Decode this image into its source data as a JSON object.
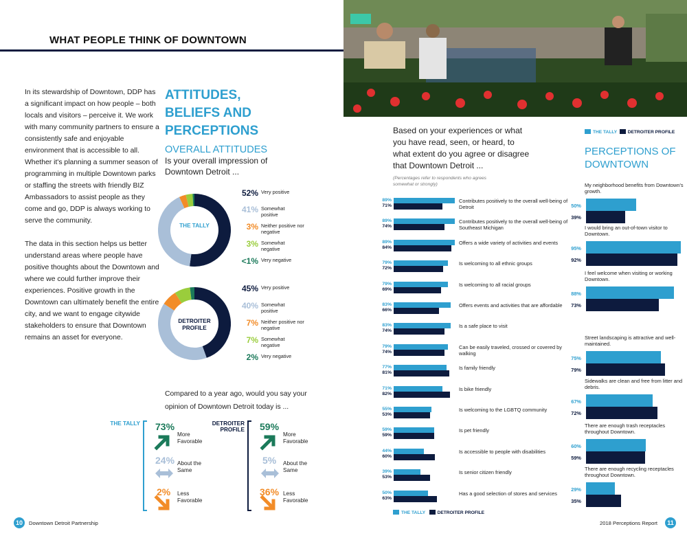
{
  "left_page": {
    "title": "WHAT PEOPLE THINK OF DOWNTOWN",
    "intro_paragraphs": [
      "In its stewardship of Downtown, DDP has a significant impact on how people – both locals and visitors – perceive it. We work with many community partners to ensure a consistently safe and enjoyable environment that is accessible to all. Whether it's planning a summer season of programming in multiple Downtown parks or staffing the streets with friendly BIZ Ambassadors to assist people as they come and go, DDP is always working to serve the community.",
      "The data in this section helps us better understand areas where people have positive thoughts about the Downtown and where we could further improve their experiences. Positive growth in the Downtown can ultimately benefit the entire city, and we want to engage citywide stakeholders to ensure that Downtown remains an asset for everyone."
    ],
    "section_title": "ATTITUDES, BELIEFS AND PERCEPTIONS",
    "subsection_title": "OVERALL ATTITUDES",
    "question": "Is your overall impression of Downtown Detroit ...",
    "donuts": [
      {
        "label": "THE TALLY",
        "color": "#2e9fcf",
        "slices": [
          {
            "pct": "52%",
            "value": 52,
            "label": "Very positive",
            "color": "#0d1b3e"
          },
          {
            "pct": "41%",
            "value": 41,
            "label": "Somewhat positive",
            "color": "#a9bfd8"
          },
          {
            "pct": "3%",
            "value": 3,
            "label": "Neither positive nor negative",
            "color": "#f28c28"
          },
          {
            "pct": "3%",
            "value": 3,
            "label": "Somewhat negative",
            "color": "#9acd3c"
          },
          {
            "pct": "<1%",
            "value": 0.8,
            "label": "Very negative",
            "color": "#1b7a5a"
          }
        ]
      },
      {
        "label": "DETROITER PROFILE",
        "color": "#0d1b3e",
        "slices": [
          {
            "pct": "45%",
            "value": 45,
            "label": "Very positive",
            "color": "#0d1b3e"
          },
          {
            "pct": "40%",
            "value": 40,
            "label": "Somewhat positive",
            "color": "#a9bfd8"
          },
          {
            "pct": "7%",
            "value": 7,
            "label": "Neither positive nor negative",
            "color": "#f28c28"
          },
          {
            "pct": "7%",
            "value": 7,
            "label": "Somewhat negative",
            "color": "#9acd3c"
          },
          {
            "pct": "2%",
            "value": 2,
            "label": "Very negative",
            "color": "#1b7a5a"
          }
        ]
      }
    ],
    "comparison_question": "Compared to a year ago, would you say your opinion of Downtown Detroit today is ...",
    "comparisons": [
      {
        "tag": "THE TALLY",
        "items": [
          {
            "pct": "73%",
            "label": "More Favorable",
            "color": "#1b7a5a"
          },
          {
            "pct": "24%",
            "label": "About the Same",
            "color": "#a9bfd8"
          },
          {
            "pct": "2%",
            "label": "Less Favorable",
            "color": "#f28c28"
          }
        ]
      },
      {
        "tag": "DETROITER PROFILE",
        "items": [
          {
            "pct": "59%",
            "label": "More Favorable",
            "color": "#1b7a5a"
          },
          {
            "pct": "5%",
            "label": "About the Same",
            "color": "#a9bfd8"
          },
          {
            "pct": "36%",
            "label": "Less Favorable",
            "color": "#f28c28"
          }
        ]
      }
    ],
    "footer": {
      "page": "10",
      "text": "Downtown Detroit Partnership"
    }
  },
  "right_page": {
    "question": "Based on your experiences or what you have read, seen, or heard, to what extent do you agree or disagree that Downtown Detroit ...",
    "note": "(Percentages refer to respondents who agrees somewhat or strongly)",
    "legend": {
      "tally": "THE TALLY",
      "detroiter": "DETROITER PROFILE"
    },
    "colors": {
      "tally": "#2e9fcf",
      "detroiter": "#0d1b3e"
    },
    "agreement_rows": [
      {
        "label": "Contributes positively to the overall well-being of Detroit",
        "tally": "89%",
        "tally_value": 89,
        "detroiter": "71%",
        "detroiter_value": 71
      },
      {
        "label": "Contributes positively to the overall well-being of Southeast Michigan",
        "tally": "89%",
        "tally_value": 89,
        "detroiter": "74%",
        "detroiter_value": 74
      },
      {
        "label": "Offers a wide variety of activities and events",
        "tally": "89%",
        "tally_value": 89,
        "detroiter": "84%",
        "detroiter_value": 84
      },
      {
        "label": "Is welcoming to all ethnic groups",
        "tally": "79%",
        "tally_value": 79,
        "detroiter": "72%",
        "detroiter_value": 72
      },
      {
        "label": "Is welcoming to all racial groups",
        "tally": "79%",
        "tally_value": 79,
        "detroiter": "69%",
        "detroiter_value": 69
      },
      {
        "label": "Offers events and activities that are affordable",
        "tally": "83%",
        "tally_value": 83,
        "detroiter": "66%",
        "detroiter_value": 66
      },
      {
        "label": "Is a safe place to visit",
        "tally": "83%",
        "tally_value": 83,
        "detroiter": "74%",
        "detroiter_value": 74
      },
      {
        "label": "Can be easily traveled, crossed or covered by walking",
        "tally": "79%",
        "tally_value": 79,
        "detroiter": "74%",
        "detroiter_value": 74
      },
      {
        "label": "Is family friendly",
        "tally": "77%",
        "tally_value": 77,
        "detroiter": "81%",
        "detroiter_value": 81
      },
      {
        "label": "Is bike friendly",
        "tally": "71%",
        "tally_value": 71,
        "detroiter": "82%",
        "detroiter_value": 82
      },
      {
        "label": "Is welcoming to the LGBTQ community",
        "tally": "55%",
        "tally_value": 55,
        "detroiter": "53%",
        "detroiter_value": 53
      },
      {
        "label": "Is pet friendly",
        "tally": "59%",
        "tally_value": 59,
        "detroiter": "59%",
        "detroiter_value": 59
      },
      {
        "label": "Is accessible to people with disabilities",
        "tally": "44%",
        "tally_value": 44,
        "detroiter": "60%",
        "detroiter_value": 60
      },
      {
        "label": "Is senior citizen friendly",
        "tally": "39%",
        "tally_value": 39,
        "detroiter": "53%",
        "detroiter_value": 53
      },
      {
        "label": "Has a good selection of stores and services",
        "tally": "50%",
        "tally_value": 50,
        "detroiter": "63%",
        "detroiter_value": 63
      }
    ],
    "perceptions_title": "PERCEPTIONS OF DOWNTOWN",
    "perceptions": [
      {
        "label": "My neighborhood benefits from Downtown's growth.",
        "tally": "50%",
        "tally_value": 50,
        "detroiter": "39%",
        "detroiter_value": 39
      },
      {
        "label": "I would bring an out-of-town visitor to Downtown.",
        "tally": "95%",
        "tally_value": 95,
        "detroiter": "92%",
        "detroiter_value": 92
      },
      {
        "label": "I feel welcome when visiting or working Downtown.",
        "tally": "88%",
        "tally_value": 88,
        "detroiter": "73%",
        "detroiter_value": 73
      },
      {
        "label": "Street landscaping is attractive and well-maintained.",
        "tally": "75%",
        "tally_value": 75,
        "detroiter": "79%",
        "detroiter_value": 79
      },
      {
        "label": "Sidewalks are clean and free from litter and debris.",
        "tally": "67%",
        "tally_value": 67,
        "detroiter": "72%",
        "detroiter_value": 72
      },
      {
        "label": "There are enough trash receptacles throughout Downtown.",
        "tally": "60%",
        "tally_value": 60,
        "detroiter": "59%",
        "detroiter_value": 59
      },
      {
        "label": "There are enough recycling receptacles throughout Downtown.",
        "tally": "29%",
        "tally_value": 29,
        "detroiter": "35%",
        "detroiter_value": 35
      }
    ],
    "footer": {
      "page": "11",
      "text": "2018 Perceptions Report"
    }
  }
}
